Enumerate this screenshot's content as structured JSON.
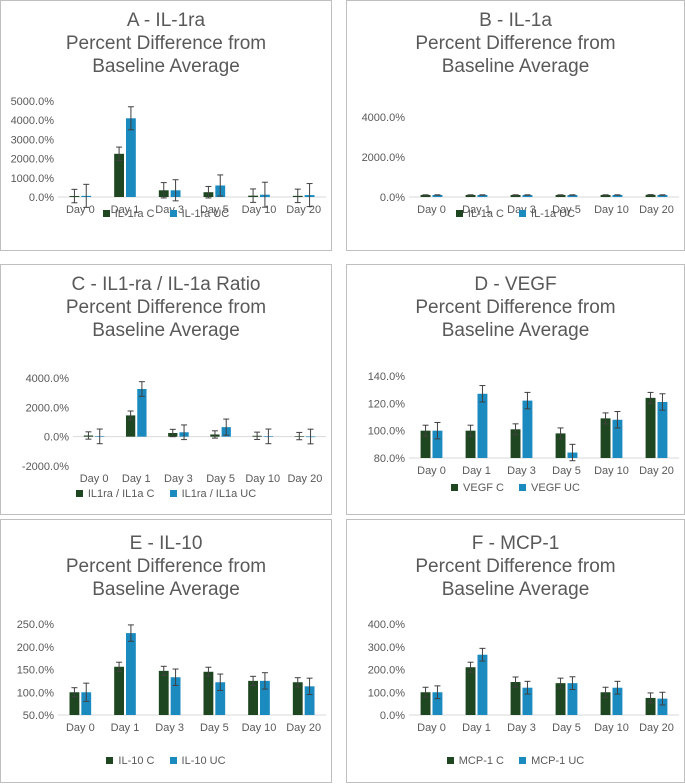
{
  "colors": {
    "c": "#1e4620",
    "uc": "#1b8abf",
    "axis": "#d9d9d9",
    "text": "#595959",
    "err": "#404040"
  },
  "chart_data": [
    {
      "type": "bar",
      "title_line1": "A - IL-1ra",
      "title_line2": "Percent Difference from",
      "title_line3": "Baseline Average",
      "categories": [
        "Day 0",
        "Day 1",
        "Day 3",
        "Day 5",
        "Day 10",
        "Day 20"
      ],
      "ylim": [
        0,
        5000
      ],
      "yticks": [
        0,
        1000,
        2000,
        3000,
        4000,
        5000
      ],
      "tick_labels": [
        "0.0%",
        "1000.0%",
        "2000.0%",
        "3000.0%",
        "4000.0%",
        "5000.0%"
      ],
      "series": [
        {
          "name": "IL-1ra C",
          "values": [
            50,
            2250,
            350,
            250,
            70,
            60
          ],
          "errors": [
            350,
            350,
            400,
            300,
            350,
            350
          ]
        },
        {
          "name": "IL-1ra UC",
          "values": [
            60,
            4100,
            350,
            600,
            120,
            100
          ],
          "errors": [
            600,
            600,
            550,
            550,
            650,
            600
          ]
        }
      ]
    },
    {
      "type": "bar",
      "title_line1": "B - IL-1a",
      "title_line2": "Percent Difference from",
      "title_line3": "Baseline Average",
      "categories": [
        "Day 0",
        "Day 1",
        "Day 3",
        "Day 5",
        "Day 10",
        "Day 20"
      ],
      "ylim": [
        0,
        4800
      ],
      "yticks": [
        0,
        2000,
        4000
      ],
      "tick_labels": [
        "0.0%",
        "2000.0%",
        "4000.0%"
      ],
      "series": [
        {
          "name": "IL-1a C",
          "values": [
            100,
            100,
            100,
            100,
            100,
            110
          ],
          "errors": [
            10,
            10,
            10,
            10,
            10,
            10
          ]
        },
        {
          "name": "IL-1a UC",
          "values": [
            100,
            100,
            100,
            100,
            100,
            100
          ],
          "errors": [
            10,
            10,
            10,
            10,
            10,
            10
          ]
        }
      ]
    },
    {
      "type": "bar",
      "title_line1": "C - IL1-ra / IL-1a Ratio",
      "title_line2": "Percent Difference from",
      "title_line3": "Baseline Average",
      "categories": [
        "Day 0",
        "Day 1",
        "Day 3",
        "Day 5",
        "Day 10",
        "Day 20"
      ],
      "ylim": [
        -2000,
        4000
      ],
      "yticks": [
        -2000,
        0,
        2000,
        4000
      ],
      "tick_labels": [
        "-2000.0%",
        "0.0%",
        "2000.0%",
        "4000.0%"
      ],
      "series": [
        {
          "name": "IL1ra / IL1a C",
          "values": [
            80,
            1450,
            250,
            150,
            60,
            40
          ],
          "errors": [
            250,
            300,
            250,
            250,
            250,
            250
          ]
        },
        {
          "name": "IL1ra / IL1a UC",
          "values": [
            20,
            3250,
            300,
            650,
            20,
            10
          ],
          "errors": [
            500,
            500,
            500,
            550,
            500,
            500
          ]
        }
      ]
    },
    {
      "type": "bar",
      "title_line1": "D - VEGF",
      "title_line2": "Percent Difference from",
      "title_line3": "Baseline Average",
      "categories": [
        "Day 0",
        "Day 1",
        "Day 3",
        "Day 5",
        "Day 10",
        "Day 20"
      ],
      "ylim": [
        80,
        140
      ],
      "yticks": [
        80,
        100,
        120,
        140
      ],
      "tick_labels": [
        "80.0%",
        "100.0%",
        "120.0%",
        "140.0%"
      ],
      "series": [
        {
          "name": "VEGF C",
          "values": [
            100,
            100,
            101,
            98,
            109,
            124
          ],
          "errors": [
            4,
            4,
            4,
            4,
            4,
            4
          ]
        },
        {
          "name": "VEGF UC",
          "values": [
            100,
            127,
            122,
            84,
            108,
            121
          ],
          "errors": [
            6,
            6,
            6,
            6,
            6,
            6
          ]
        }
      ]
    },
    {
      "type": "bar",
      "title_line1": "E - IL-10",
      "title_line2": "Percent Difference from",
      "title_line3": "Baseline Average",
      "categories": [
        "Day 0",
        "Day 1",
        "Day 3",
        "Day 5",
        "Day 10",
        "Day 20"
      ],
      "ylim": [
        50,
        250
      ],
      "yticks": [
        50,
        100,
        150,
        200,
        250
      ],
      "tick_labels": [
        "50.0%",
        "100.0%",
        "150.0%",
        "200.0%",
        "250.0%"
      ],
      "series": [
        {
          "name": "IL-10 C",
          "values": [
            100,
            156,
            147,
            145,
            125,
            122
          ],
          "errors": [
            10,
            10,
            10,
            10,
            10,
            10
          ]
        },
        {
          "name": "IL-10 UC",
          "values": [
            100,
            230,
            133,
            122,
            125,
            113
          ],
          "errors": [
            20,
            18,
            18,
            18,
            18,
            18
          ]
        }
      ]
    },
    {
      "type": "bar",
      "title_line1": "F - MCP-1",
      "title_line2": "Percent Difference from",
      "title_line3": "Baseline Average",
      "categories": [
        "Day 0",
        "Day 1",
        "Day 3",
        "Day 5",
        "Day 10",
        "Day 20"
      ],
      "ylim": [
        0,
        400
      ],
      "yticks": [
        0,
        100,
        200,
        300,
        400
      ],
      "tick_labels": [
        "0.0%",
        "100.0%",
        "200.0%",
        "300.0%",
        "400.0%"
      ],
      "series": [
        {
          "name": "MCP-1 C",
          "values": [
            100,
            210,
            145,
            140,
            100,
            75
          ],
          "errors": [
            22,
            22,
            22,
            22,
            22,
            22
          ]
        },
        {
          "name": "MCP-1 UC",
          "values": [
            100,
            265,
            120,
            140,
            120,
            72
          ],
          "errors": [
            28,
            28,
            28,
            28,
            28,
            28
          ]
        }
      ]
    }
  ]
}
